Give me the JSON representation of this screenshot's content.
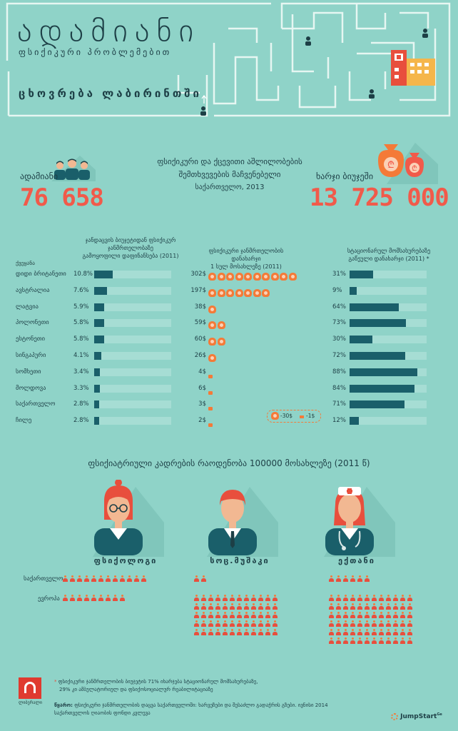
{
  "header": {
    "title": "ადამიანი",
    "subtitle": "ფსიქიკური პრობლემებით",
    "maze_text": "ცხოვრება ლაბირინთში"
  },
  "stats": {
    "people_label": "ადამიანი",
    "people_value": "76 658",
    "center_line1": "ფსიქიკური და ქცევითი აშლილობების",
    "center_line2": "შემთხვევების მაჩვენებელი",
    "center_line3": "საქართველო, 2013",
    "cost_label": "ხარჯი ბიუჯეში",
    "cost_value": "13 725 000"
  },
  "table": {
    "country_head": "ქვეყანა",
    "col1_head1": "ჯანდაცვის ბიუჯეტიდან ფსიქიკურ ჯანმრთელობაზე",
    "col1_head2": "გამოყოფილი დაფინანსება (2011)",
    "col2_head1": "ფსიქიკური ჯანმრთელობის დანახარჯი",
    "col2_head2": "1 სულ მოსახლეზე (2011)",
    "col3_head1": "სტაციონარულ მომსახურებაზე",
    "col3_head2": "გაწეული დანახარჯი (2011)",
    "col3_star": "*",
    "legend_big": "-30$",
    "legend_small": "-1$",
    "rows": [
      {
        "country": "დიდი ბრიტანეთი",
        "pct": "10.8%",
        "pct_val": 10.8,
        "cost": "302$",
        "bags": 10,
        "small": false,
        "opct": "31%",
        "opct_val": 31
      },
      {
        "country": "ავსტრალია",
        "pct": "7.6%",
        "pct_val": 7.6,
        "cost": "197$",
        "bags": 7,
        "small": false,
        "opct": "9%",
        "opct_val": 9
      },
      {
        "country": "ლატვია",
        "pct": "5.9%",
        "pct_val": 5.9,
        "cost": "38$",
        "bags": 1,
        "small": false,
        "opct": "64%",
        "opct_val": 64
      },
      {
        "country": "პოლონეთი",
        "pct": "5.8%",
        "pct_val": 5.8,
        "cost": "59$",
        "bags": 2,
        "small": false,
        "opct": "73%",
        "opct_val": 73
      },
      {
        "country": "ესტონეთი",
        "pct": "5.8%",
        "pct_val": 5.8,
        "cost": "60$",
        "bags": 2,
        "small": false,
        "opct": "30%",
        "opct_val": 30
      },
      {
        "country": "სინგაპური",
        "pct": "4.1%",
        "pct_val": 4.1,
        "cost": "26$",
        "bags": 1,
        "small": false,
        "opct": "72%",
        "opct_val": 72
      },
      {
        "country": "სომხეთი",
        "pct": "3.4%",
        "pct_val": 3.4,
        "cost": "4$",
        "bags": 1,
        "small": true,
        "opct": "88%",
        "opct_val": 88
      },
      {
        "country": "მოლდოვა",
        "pct": "3.3%",
        "pct_val": 3.3,
        "cost": "6$",
        "bags": 1,
        "small": true,
        "opct": "84%",
        "opct_val": 84
      },
      {
        "country": "საქართველო",
        "pct": "2.8%",
        "pct_val": 2.8,
        "cost": "3$",
        "bags": 1,
        "small": true,
        "opct": "71%",
        "opct_val": 71
      },
      {
        "country": "ჩილე",
        "pct": "2.8%",
        "pct_val": 2.8,
        "cost": "2$",
        "bags": 1,
        "small": true,
        "opct": "12%",
        "opct_val": 12
      }
    ]
  },
  "staff": {
    "title": "ფსიქიატრიული კადრების რაოდენობა 100000 მოსახლეზე (2011 წ)",
    "row_georgia": "საქართველო",
    "row_europe": "ევროპა",
    "professions": [
      {
        "name": "ფსიქოლოგი",
        "georgia": 12,
        "europe": 9
      },
      {
        "name": "სოც.მუშაკი",
        "georgia": 2,
        "europe": 60
      },
      {
        "name": "ექთანი",
        "georgia": 6,
        "europe": 72
      }
    ]
  },
  "footer": {
    "note1": "ფსიქიკური ჯანმრთელობის ბიუჯეტის 71% იხარჯება სტაციონარულ მომსახურებაზე,",
    "note2": "29% კი ამბულატორიულ და ფსიქოსოციალურ რეაბილიტაციაზე",
    "source_label": "წყარო:",
    "source1": "ფსიქიკური ჯანმრთელობის დაცვა საქართველოში: ხარვეზები და შესაძლო გადაჭრის გზები. ივნისი 2014",
    "source2": "საქართველოს ღიაობის ფონდი კვლევა",
    "logo_text": "ლიბერალი",
    "brand": "JumpStart",
    "brand_sup": "Ge"
  }
}
